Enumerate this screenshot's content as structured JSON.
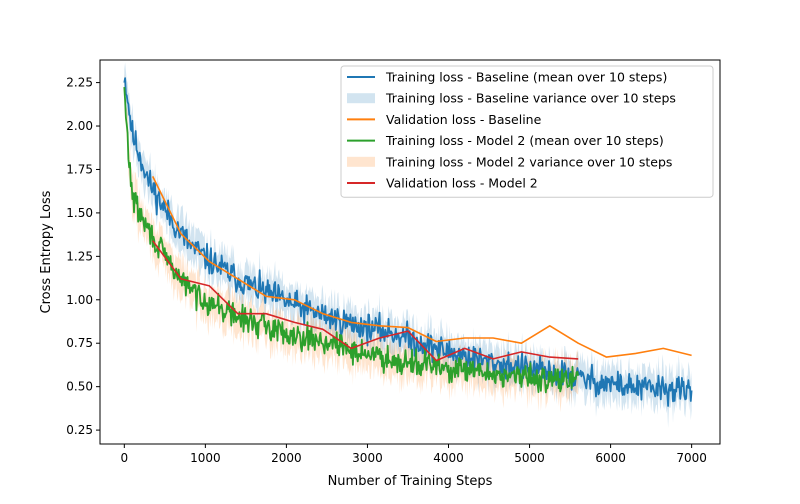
{
  "chart_data": {
    "type": "line",
    "title": "",
    "xlabel": "Number of Training Steps",
    "ylabel": "Cross Entropy Loss",
    "xlim": [
      -300,
      7350
    ],
    "ylim": [
      0.17,
      2.38
    ],
    "xticks": [
      0,
      1000,
      2000,
      3000,
      4000,
      5000,
      6000,
      7000
    ],
    "yticks": [
      0.25,
      0.5,
      0.75,
      1.0,
      1.25,
      1.5,
      1.75,
      2.0,
      2.25
    ],
    "xtick_labels": [
      "0",
      "1000",
      "2000",
      "3000",
      "4000",
      "5000",
      "6000",
      "7000"
    ],
    "ytick_labels": [
      "0.25",
      "0.50",
      "0.75",
      "1.00",
      "1.25",
      "1.50",
      "1.75",
      "2.00",
      "2.25"
    ],
    "grid": false,
    "legend_position": "upper-right",
    "colors": {
      "baseline": "#1f77b4",
      "baseline_band": "#1f77b4",
      "val_baseline": "#ff7f0e",
      "model2": "#2ca02c",
      "model2_band": "#ff7f0e",
      "val_model2": "#d62728"
    },
    "series": [
      {
        "name": "Training loss - Baseline (mean over 10 steps)",
        "kind": "line",
        "color_key": "baseline",
        "x": [
          0,
          100,
          200,
          300,
          400,
          500,
          600,
          700,
          800,
          900,
          1000,
          1200,
          1400,
          1600,
          1800,
          2000,
          2200,
          2400,
          2600,
          2800,
          3000,
          3200,
          3400,
          3600,
          3800,
          4000,
          4200,
          4400,
          4600,
          4800,
          5000,
          5200,
          5400,
          5600,
          5800,
          6000,
          6200,
          6400,
          6600,
          6800,
          7000
        ],
        "y": [
          2.3,
          1.95,
          1.82,
          1.68,
          1.6,
          1.52,
          1.45,
          1.38,
          1.32,
          1.28,
          1.24,
          1.18,
          1.12,
          1.07,
          1.03,
          0.99,
          0.95,
          0.92,
          0.89,
          0.86,
          0.84,
          0.82,
          0.8,
          0.76,
          0.73,
          0.7,
          0.68,
          0.65,
          0.63,
          0.62,
          0.6,
          0.58,
          0.57,
          0.55,
          0.53,
          0.52,
          0.5,
          0.49,
          0.49,
          0.48,
          0.47
        ],
        "noise": 0.05,
        "seed": 11
      },
      {
        "name": "Training loss - Baseline variance over 10 steps",
        "kind": "band",
        "color_key": "baseline_band",
        "of_series": 0,
        "width": 0.09
      },
      {
        "name": "Validation loss - Baseline",
        "kind": "line",
        "color_key": "val_baseline",
        "x": [
          350,
          700,
          1050,
          1400,
          1750,
          2100,
          2450,
          2800,
          3150,
          3500,
          3850,
          4200,
          4550,
          4900,
          5250,
          5600,
          5950,
          6300,
          6650,
          7000
        ],
        "y": [
          1.71,
          1.38,
          1.22,
          1.12,
          1.02,
          1.0,
          0.92,
          0.87,
          0.85,
          0.84,
          0.76,
          0.78,
          0.78,
          0.75,
          0.85,
          0.75,
          0.67,
          0.69,
          0.72,
          0.68
        ]
      },
      {
        "name": "Training loss - Model 2 (mean over 10 steps)",
        "kind": "line",
        "color_key": "model2",
        "x": [
          0,
          50,
          100,
          200,
          300,
          400,
          500,
          600,
          700,
          800,
          900,
          1000,
          1200,
          1400,
          1600,
          1800,
          2000,
          2200,
          2400,
          2600,
          2800,
          3000,
          3200,
          3400,
          3600,
          3800,
          4000,
          4200,
          4400,
          4600,
          4800,
          5000,
          5200,
          5400,
          5600
        ],
        "y": [
          2.2,
          1.85,
          1.6,
          1.48,
          1.4,
          1.32,
          1.25,
          1.18,
          1.12,
          1.07,
          1.03,
          1.0,
          0.95,
          0.9,
          0.87,
          0.84,
          0.81,
          0.79,
          0.77,
          0.74,
          0.71,
          0.69,
          0.67,
          0.65,
          0.64,
          0.62,
          0.6,
          0.59,
          0.58,
          0.57,
          0.56,
          0.55,
          0.55,
          0.54,
          0.54
        ],
        "noise": 0.045,
        "seed": 29
      },
      {
        "name": "Training loss - Model 2 variance over 10 steps",
        "kind": "band",
        "color_key": "model2_band",
        "of_series": 3,
        "width": 0.09
      },
      {
        "name": "Validation loss - Model 2",
        "kind": "line",
        "color_key": "val_model2",
        "x": [
          350,
          700,
          1050,
          1400,
          1750,
          2100,
          2450,
          2800,
          3150,
          3500,
          3850,
          4200,
          4550,
          4900,
          5250,
          5600
        ],
        "y": [
          1.34,
          1.12,
          1.08,
          0.92,
          0.92,
          0.87,
          0.83,
          0.72,
          0.78,
          0.82,
          0.65,
          0.72,
          0.66,
          0.7,
          0.67,
          0.66
        ]
      }
    ]
  }
}
